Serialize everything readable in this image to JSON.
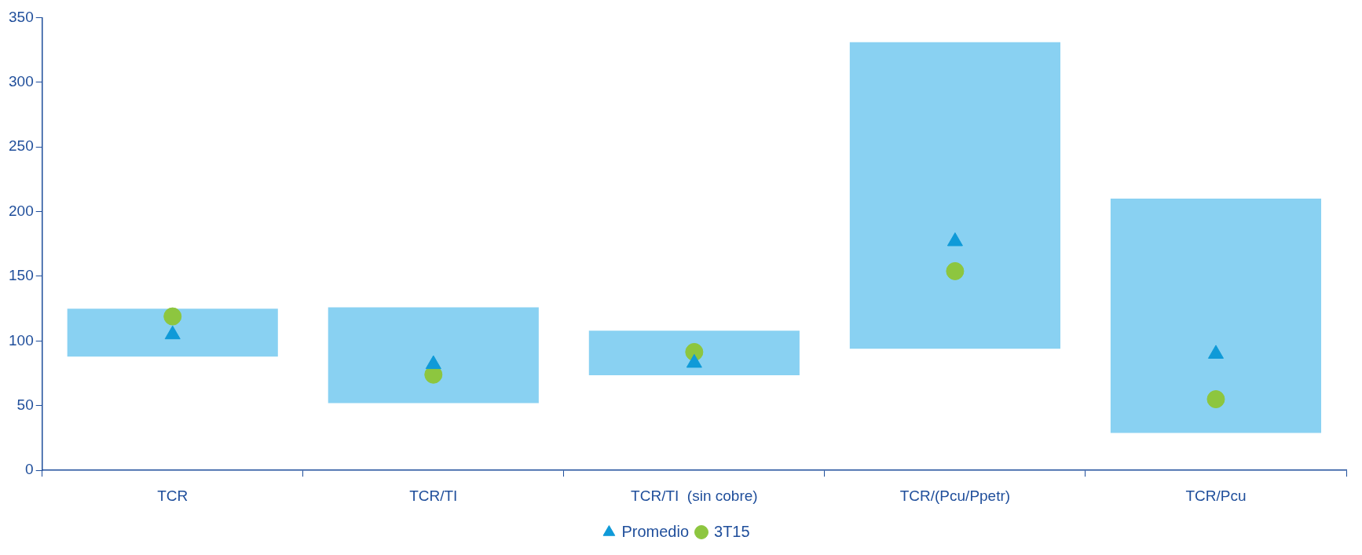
{
  "chart_data": {
    "type": "bar",
    "categories": [
      "TCR",
      "TCR/TI",
      "TCR/TI  (sin cobre)",
      "TCR/(Pcu/Ppetr)",
      "TCR/Pcu"
    ],
    "series": [
      {
        "color": "#89d1f2",
        "base": [
          88,
          52,
          73.5,
          94,
          29
        ],
        "values": [
          37,
          74,
          34.5,
          237,
          181
        ]
      },
      {
        "type": "scatter",
        "name": "Promedio",
        "marker": "triangle",
        "color": "#0f9ad8",
        "x": [
          "TCR",
          "TCR/TI",
          "TCR/TI  (sin cobre)",
          "TCR/(Pcu/Ppetr)",
          "TCR/Pcu"
        ],
        "values": [
          105,
          82,
          83,
          177,
          90
        ]
      },
      {
        "type": "scatter",
        "name": "3T15",
        "marker": "circle",
        "color": "#8dc63f",
        "x": [
          "TCR",
          "TCR/TI",
          "TCR/TI  (sin cobre)",
          "TCR/(Pcu/Ppetr)",
          "TCR/Pcu"
        ],
        "values": [
          119,
          74,
          91.5,
          154,
          55
        ]
      }
    ],
    "ylim": [
      0,
      350
    ],
    "yticks": [
      0,
      50,
      100,
      150,
      200,
      250,
      300,
      350
    ],
    "legend": "bottom"
  }
}
